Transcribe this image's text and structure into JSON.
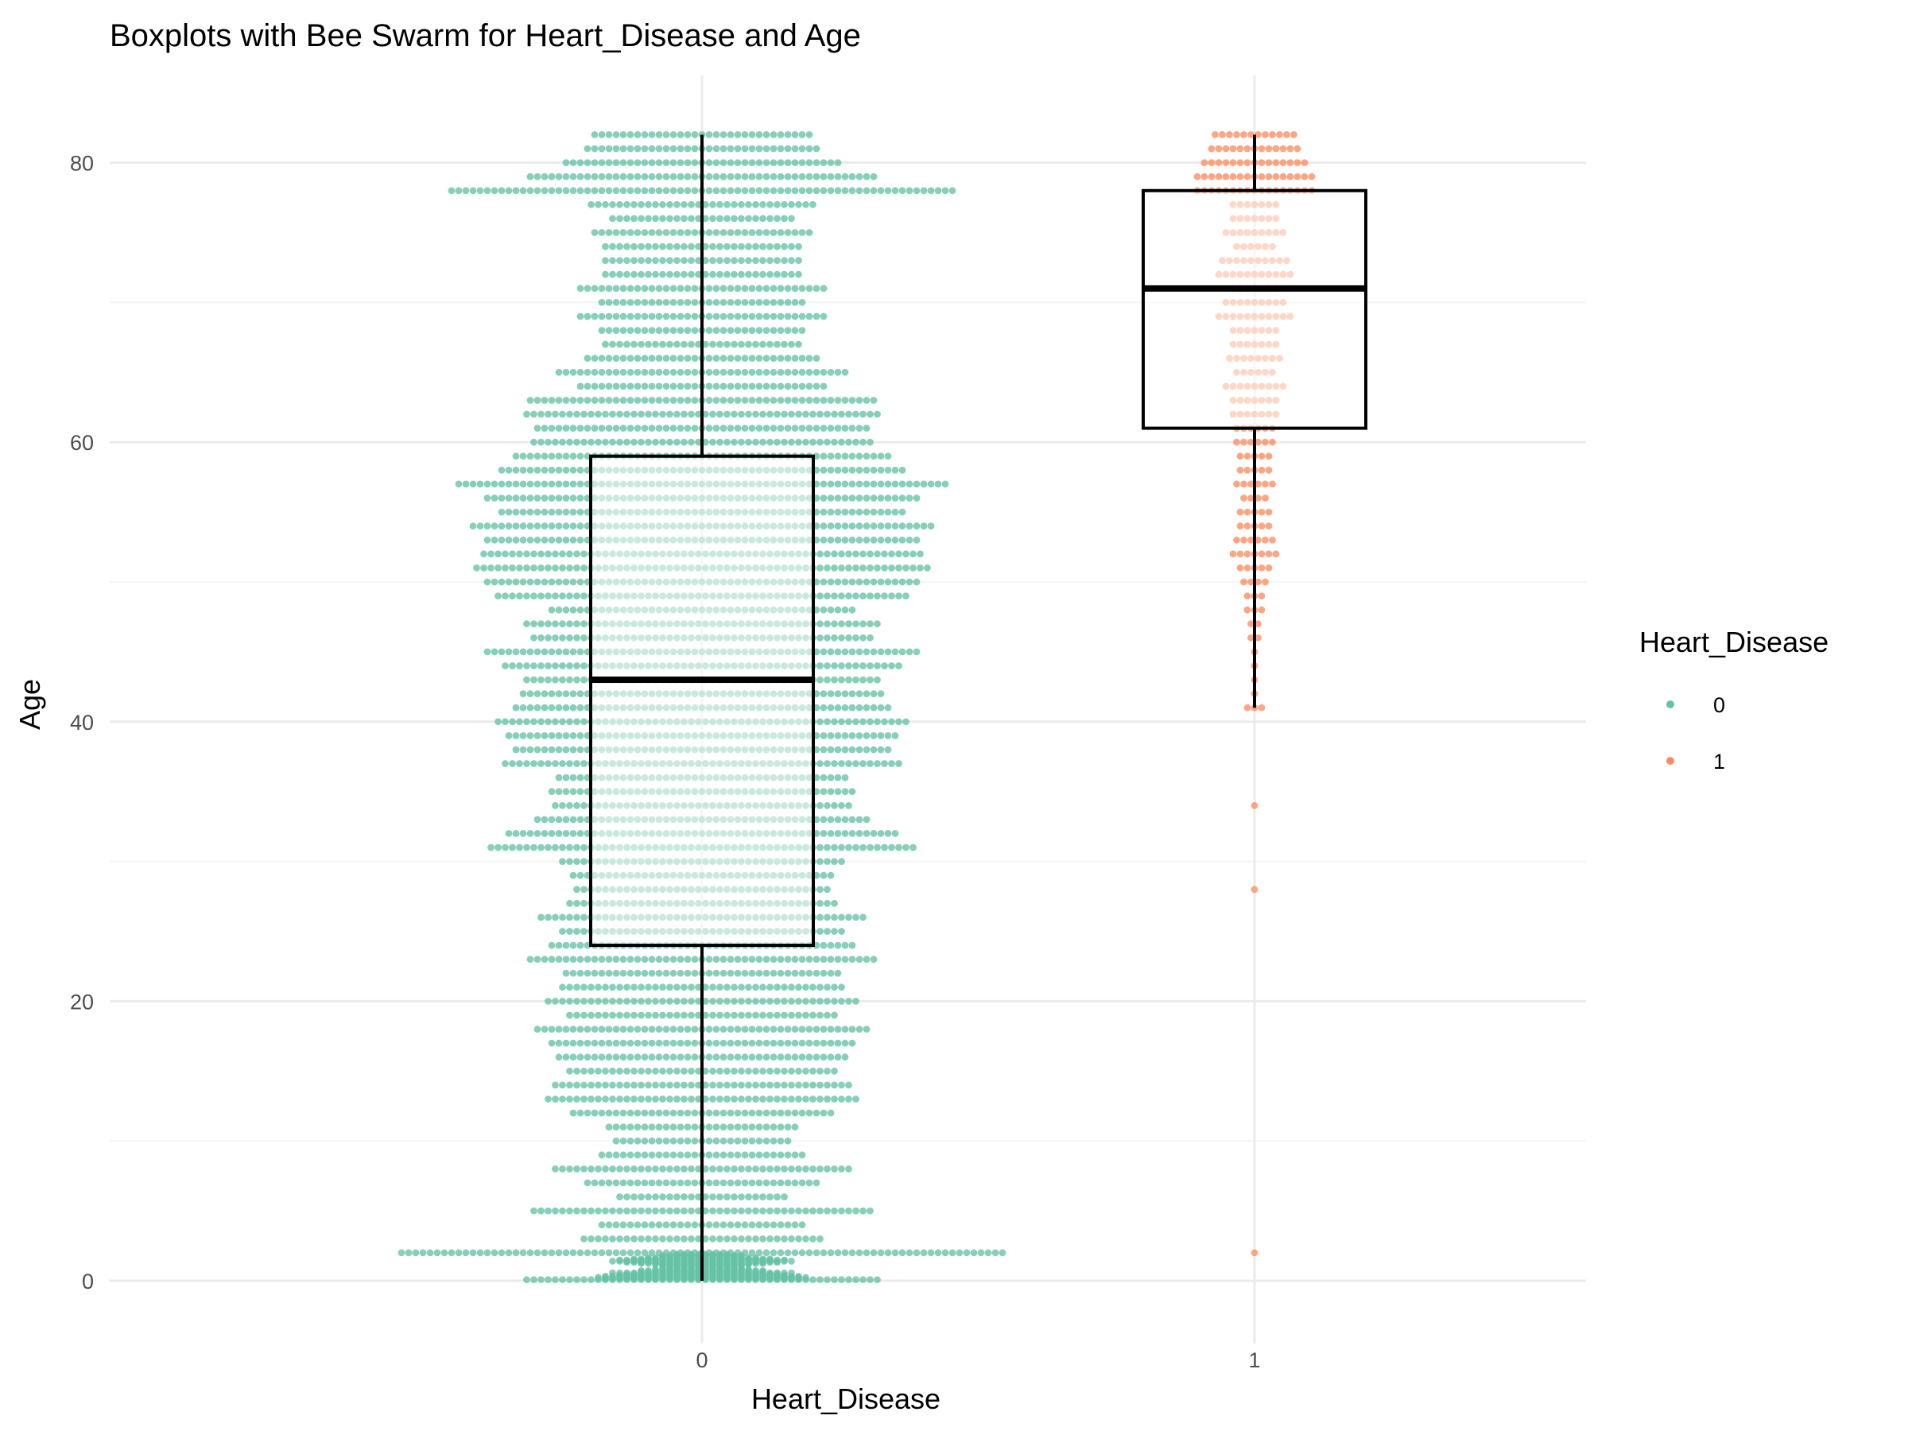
{
  "chart_data": {
    "type": "boxplot-beeswarm",
    "title": "Boxplots with Bee Swarm for Heart_Disease and Age",
    "xlabel": "Heart_Disease",
    "ylabel": "Age",
    "categories": [
      "0",
      "1"
    ],
    "ylim": [
      -4,
      86
    ],
    "y_ticks": [
      0,
      20,
      40,
      60,
      80
    ],
    "grid": true,
    "legend": {
      "title": "Heart_Disease",
      "position": "right",
      "entries": [
        {
          "label": "0",
          "color": "#66c2a5"
        },
        {
          "label": "1",
          "color": "#fc8d62"
        }
      ]
    },
    "boxes": [
      {
        "category": "0",
        "min": 0,
        "q1": 24,
        "median": 43,
        "q3": 59,
        "max": 82
      },
      {
        "category": "1",
        "min": 41,
        "q1": 61,
        "median": 71,
        "q3": 78,
        "max": 82
      }
    ],
    "swarm_counts": {
      "0": [
        [
          0.08,
          50
        ],
        [
          0.16,
          28
        ],
        [
          0.24,
          30
        ],
        [
          0.32,
          28
        ],
        [
          0.4,
          24
        ],
        [
          0.48,
          22
        ],
        [
          0.56,
          26
        ],
        [
          0.64,
          18
        ],
        [
          0.72,
          18
        ],
        [
          0.8,
          14
        ],
        [
          0.88,
          12
        ],
        [
          1.0,
          10
        ],
        [
          1.08,
          12
        ],
        [
          1.16,
          14
        ],
        [
          1.24,
          18
        ],
        [
          1.32,
          22
        ],
        [
          1.4,
          26
        ],
        [
          1.48,
          24
        ],
        [
          1.56,
          20
        ],
        [
          1.64,
          16
        ],
        [
          1.72,
          12
        ],
        [
          1.8,
          12
        ],
        [
          1.88,
          8
        ],
        [
          2,
          85
        ],
        [
          3,
          34
        ],
        [
          4,
          29
        ],
        [
          5,
          48
        ],
        [
          6,
          24
        ],
        [
          7,
          33
        ],
        [
          8,
          42
        ],
        [
          9,
          29
        ],
        [
          10,
          25
        ],
        [
          11,
          27
        ],
        [
          12,
          37
        ],
        [
          13,
          44
        ],
        [
          14,
          42
        ],
        [
          15,
          38
        ],
        [
          16,
          41
        ],
        [
          17,
          43
        ],
        [
          18,
          47
        ],
        [
          19,
          38
        ],
        [
          20,
          44
        ],
        [
          21,
          40
        ],
        [
          22,
          39
        ],
        [
          23,
          49
        ],
        [
          24,
          43
        ],
        [
          25,
          40
        ],
        [
          26,
          46
        ],
        [
          27,
          38
        ],
        [
          28,
          36
        ],
        [
          29,
          37
        ],
        [
          30,
          40
        ],
        [
          31,
          60
        ],
        [
          32,
          55
        ],
        [
          33,
          47
        ],
        [
          34,
          42
        ],
        [
          35,
          43
        ],
        [
          36,
          41
        ],
        [
          37,
          56
        ],
        [
          38,
          53
        ],
        [
          39,
          55
        ],
        [
          40,
          58
        ],
        [
          41,
          53
        ],
        [
          42,
          51
        ],
        [
          43,
          50
        ],
        [
          44,
          56
        ],
        [
          45,
          61
        ],
        [
          46,
          48
        ],
        [
          47,
          50
        ],
        [
          48,
          43
        ],
        [
          49,
          58
        ],
        [
          50,
          61
        ],
        [
          51,
          64
        ],
        [
          52,
          62
        ],
        [
          53,
          61
        ],
        [
          54,
          65
        ],
        [
          55,
          57
        ],
        [
          56,
          61
        ],
        [
          57,
          69
        ],
        [
          58,
          57
        ],
        [
          59,
          53
        ],
        [
          60,
          48
        ],
        [
          61,
          47
        ],
        [
          62,
          50
        ],
        [
          63,
          49
        ],
        [
          64,
          35
        ],
        [
          65,
          41
        ],
        [
          66,
          33
        ],
        [
          67,
          28
        ],
        [
          68,
          29
        ],
        [
          69,
          35
        ],
        [
          70,
          29
        ],
        [
          71,
          35
        ],
        [
          72,
          28
        ],
        [
          73,
          28
        ],
        [
          74,
          28
        ],
        [
          75,
          31
        ],
        [
          76,
          26
        ],
        [
          77,
          32
        ],
        [
          78,
          71
        ],
        [
          79,
          49
        ],
        [
          80,
          39
        ],
        [
          81,
          33
        ],
        [
          82,
          31
        ]
      ],
      "1": [
        [
          2,
          1
        ],
        [
          28,
          1
        ],
        [
          34,
          1
        ],
        [
          41,
          3
        ],
        [
          42,
          1
        ],
        [
          43,
          1
        ],
        [
          44,
          1
        ],
        [
          45,
          1
        ],
        [
          46,
          2
        ],
        [
          47,
          2
        ],
        [
          48,
          3
        ],
        [
          49,
          3
        ],
        [
          50,
          4
        ],
        [
          51,
          5
        ],
        [
          52,
          7
        ],
        [
          53,
          6
        ],
        [
          54,
          5
        ],
        [
          55,
          5
        ],
        [
          56,
          4
        ],
        [
          57,
          6
        ],
        [
          58,
          5
        ],
        [
          59,
          5
        ],
        [
          60,
          6
        ],
        [
          61,
          6
        ],
        [
          62,
          7
        ],
        [
          63,
          7
        ],
        [
          64,
          9
        ],
        [
          65,
          6
        ],
        [
          66,
          8
        ],
        [
          67,
          7
        ],
        [
          68,
          7
        ],
        [
          69,
          11
        ],
        [
          70,
          9
        ],
        [
          71,
          7
        ],
        [
          72,
          11
        ],
        [
          73,
          10
        ],
        [
          74,
          6
        ],
        [
          75,
          9
        ],
        [
          76,
          7
        ],
        [
          77,
          7
        ],
        [
          78,
          17
        ],
        [
          79,
          17
        ],
        [
          80,
          15
        ],
        [
          81,
          13
        ],
        [
          82,
          12
        ]
      ]
    }
  }
}
